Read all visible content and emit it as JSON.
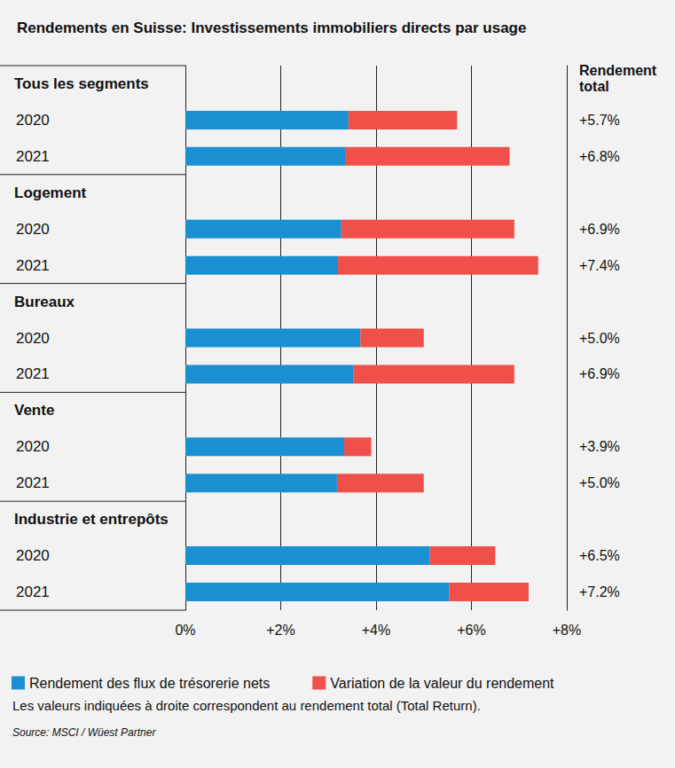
{
  "chart_data": {
    "type": "bar",
    "title": "Rendements en Suisse: Investissements immobiliers directs par usage",
    "orientation": "horizontal",
    "stacked": true,
    "grid": true,
    "legend": "bottom-left",
    "categories": [
      "Tous les segments",
      "2020",
      "2021",
      "Logement",
      "2020",
      "2021",
      "Bureaux",
      "2020",
      "2021",
      "Vente",
      "2020",
      "2021",
      "Industrie et entrepôts",
      "2020",
      "2021"
    ],
    "series": [
      {
        "name": "Rendement des flux de trésorerie nets",
        "color": "#1a8fd2",
        "values": [
          null,
          3.42,
          3.35,
          null,
          3.27,
          3.2,
          null,
          3.67,
          3.53,
          null,
          3.33,
          3.18,
          null,
          5.13,
          5.53
        ]
      },
      {
        "name": "Variation de la valeur du rendement",
        "color": "#ef5049",
        "values": [
          null,
          2.28,
          3.45,
          null,
          3.63,
          4.2,
          null,
          1.33,
          3.37,
          null,
          0.57,
          1.82,
          null,
          1.37,
          1.67
        ]
      }
    ],
    "xlim": [
      0,
      8
    ],
    "xticks": [
      {
        "value": 0,
        "label": "0%"
      },
      {
        "value": 2,
        "label": "+2%"
      },
      {
        "value": 4,
        "label": "+4%"
      },
      {
        "value": 6,
        "label": "+6%"
      },
      {
        "value": 8,
        "label": "+8%"
      }
    ],
    "total_title": "Rendement total",
    "total_labels": [
      null,
      "+5.7%",
      "+6.8%",
      null,
      "+6.9%",
      "+7.4%",
      null,
      "+5.0%",
      "+6.9%",
      null,
      "+3.9%",
      "+5.0%",
      null,
      "+6.5%",
      "+7.2%"
    ],
    "note": "Les valeurs indiquées à droite correspondent au rendement total (Total Return).",
    "source": "Source: MSCI / Wüest Partner"
  }
}
